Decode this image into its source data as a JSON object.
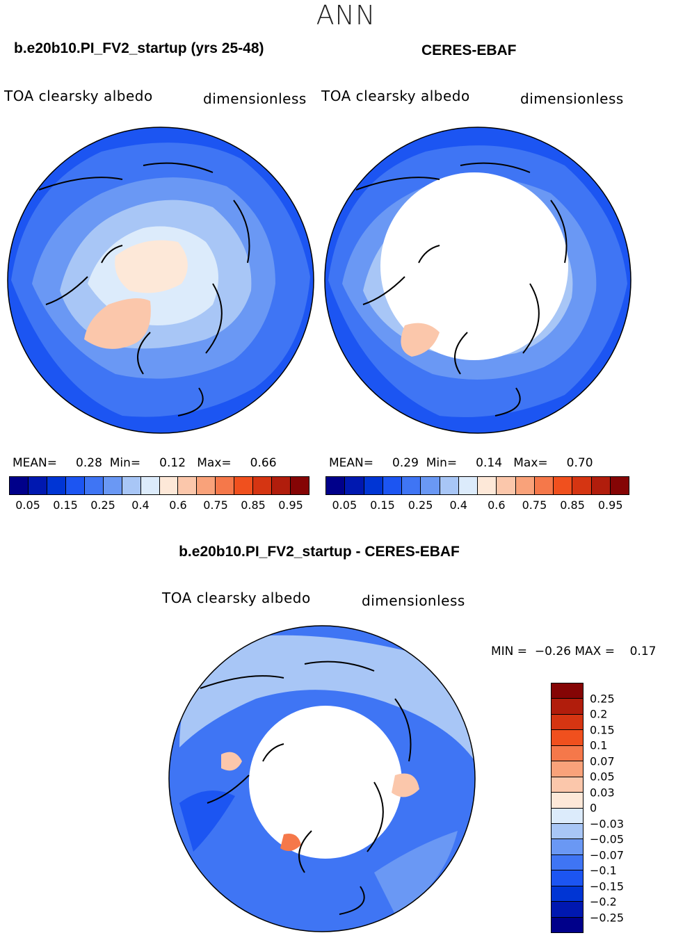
{
  "season": "ANN",
  "panels": {
    "model": {
      "title": "b.e20b10.PI_FV2_startup (yrs 25-48)",
      "variable": "TOA clearsky albedo",
      "units": "dimensionless",
      "stats": {
        "mean_label": "MEAN=",
        "mean": "0.28",
        "min_label": "Min=",
        "min": "0.12",
        "max_label": "Max=",
        "max": "0.66"
      }
    },
    "obs": {
      "title": "CERES-EBAF",
      "variable": "TOA clearsky albedo",
      "units": "dimensionless",
      "stats": {
        "mean_label": "MEAN=",
        "mean": "0.29",
        "min_label": "Min=",
        "min": "0.14",
        "max_label": "Max=",
        "max": "0.70"
      }
    },
    "diff": {
      "title": "b.e20b10.PI_FV2_startup - CERES-EBAF",
      "variable": "TOA clearsky albedo",
      "units": "dimensionless",
      "stats": {
        "min_label": "MIN =",
        "min": "−0.26",
        "max_label": "MAX =",
        "max": "0.17"
      }
    }
  },
  "colorbar_abs": {
    "colors": [
      "#00008a",
      "#0018b0",
      "#0035d4",
      "#1c55f2",
      "#3f75f4",
      "#6a98f4",
      "#a8c6f6",
      "#dcebfb",
      "#fde8d8",
      "#fbc7ab",
      "#f9a27a",
      "#f5784a",
      "#f0501e",
      "#d53512",
      "#b11d0c",
      "#850505"
    ],
    "tick_labels": [
      "0.05",
      "0.15",
      "0.25",
      "0.4",
      "0.6",
      "0.75",
      "0.85",
      "0.95"
    ]
  },
  "colorbar_diff": {
    "colors": [
      "#850505",
      "#b11d0c",
      "#d53512",
      "#f0501e",
      "#f5784a",
      "#f9a27a",
      "#fbc7ab",
      "#fde8d8",
      "#dcebfb",
      "#a8c6f6",
      "#6a98f4",
      "#3f75f4",
      "#1c55f2",
      "#0035d4",
      "#0018b0",
      "#00008a"
    ],
    "labels": [
      "0.25",
      "0.2",
      "0.15",
      "0.1",
      "0.07",
      "0.05",
      "0.03",
      "0",
      "−0.03",
      "−0.05",
      "−0.07",
      "−0.1",
      "−0.15",
      "−0.2",
      "−0.25"
    ]
  }
}
